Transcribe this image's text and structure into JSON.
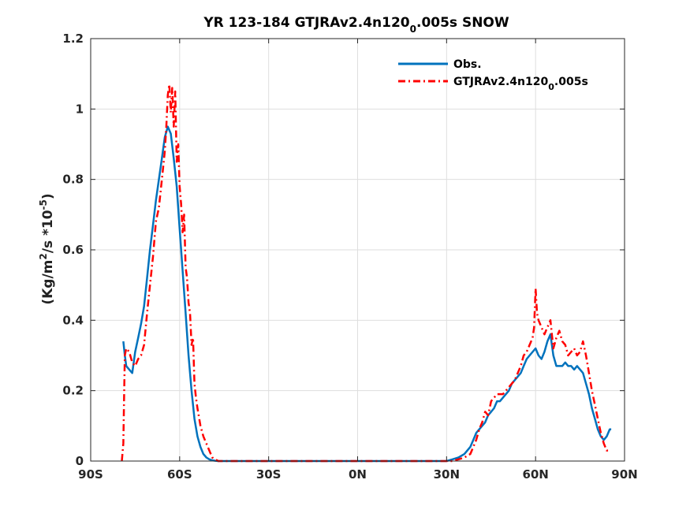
{
  "chart_data": {
    "type": "line",
    "title_main": "YR 123-184 GTJRAv2.4n120",
    "title_sub": "0",
    "title_end": ".005s SNOW",
    "ylabel_pre": "(Kg/m",
    "ylabel_sup1": "2",
    "ylabel_mid": "/s *10",
    "ylabel_sup2": "-5",
    "ylabel_post": ")",
    "xlim": [
      -90,
      90
    ],
    "ylim": [
      0,
      1.2
    ],
    "x_ticks": [
      -90,
      -60,
      -30,
      0,
      30,
      60,
      90
    ],
    "x_tick_labels": [
      "90S",
      "60S",
      "30S",
      "0N",
      "30N",
      "60N",
      "90N"
    ],
    "y_ticks": [
      0,
      0.2,
      0.4,
      0.6,
      0.8,
      1.0,
      1.2
    ],
    "y_tick_labels": [
      "0",
      "0.2",
      "0.4",
      "0.6",
      "0.8",
      "1",
      "1.2"
    ],
    "grid": true,
    "legend_position": "top-right",
    "series": [
      {
        "name": "Obs.",
        "color": "#0072BD",
        "style": "solid",
        "x": [
          -79,
          -78.5,
          -78,
          -77,
          -76,
          -75,
          -74,
          -73,
          -72,
          -71,
          -70,
          -69,
          -68,
          -67,
          -66,
          -65,
          -64,
          -63.5,
          -63,
          -62,
          -61,
          -60,
          -59,
          -58,
          -57,
          -56,
          -55,
          -54,
          -53,
          -52,
          -51,
          -50,
          -49,
          -48,
          -47,
          -45,
          -40,
          -30,
          -20,
          -10,
          0,
          10,
          20,
          25,
          28,
          30,
          32,
          34,
          36,
          38,
          39,
          40,
          41,
          42,
          43,
          44,
          45,
          46,
          47,
          48,
          49,
          50,
          51,
          52,
          53,
          54,
          55,
          56,
          57,
          58,
          59,
          60,
          61,
          62,
          63,
          64,
          65,
          66,
          67,
          68,
          69,
          70,
          71,
          72,
          73,
          74,
          75,
          76,
          77,
          78,
          79,
          80,
          81,
          82,
          83,
          84,
          85,
          85.5
        ],
        "y": [
          0.34,
          0.3,
          0.27,
          0.26,
          0.25,
          0.31,
          0.35,
          0.39,
          0.44,
          0.52,
          0.6,
          0.67,
          0.74,
          0.8,
          0.86,
          0.92,
          0.95,
          0.94,
          0.93,
          0.86,
          0.78,
          0.66,
          0.54,
          0.42,
          0.3,
          0.2,
          0.12,
          0.07,
          0.04,
          0.02,
          0.01,
          0.005,
          0.002,
          0.001,
          0.0,
          0.0,
          0.0,
          0.0,
          0.0,
          0.0,
          0.0,
          0.0,
          0.0,
          0.0,
          0.0,
          0.0,
          0.005,
          0.01,
          0.02,
          0.04,
          0.06,
          0.08,
          0.09,
          0.1,
          0.11,
          0.13,
          0.14,
          0.15,
          0.17,
          0.17,
          0.18,
          0.19,
          0.2,
          0.22,
          0.23,
          0.24,
          0.25,
          0.27,
          0.29,
          0.3,
          0.31,
          0.32,
          0.3,
          0.29,
          0.31,
          0.34,
          0.36,
          0.3,
          0.27,
          0.27,
          0.27,
          0.28,
          0.27,
          0.27,
          0.26,
          0.27,
          0.26,
          0.25,
          0.22,
          0.19,
          0.15,
          0.12,
          0.09,
          0.07,
          0.06,
          0.07,
          0.09,
          0.09
        ]
      },
      {
        "name": "GTJRAv2.4n120_0.005s",
        "color": "#FF0000",
        "style": "dashdot",
        "x": [
          -79.5,
          -79,
          -78.7,
          -78.5,
          -78,
          -77,
          -76,
          -75,
          -74,
          -73,
          -72,
          -71,
          -70,
          -69,
          -68,
          -67,
          -66,
          -65,
          -64.5,
          -64,
          -63.5,
          -63,
          -62.5,
          -62,
          -61.5,
          -61,
          -60.5,
          -60,
          -59.5,
          -59,
          -58.5,
          -58,
          -57.5,
          -57,
          -56.5,
          -56,
          -55.5,
          -55,
          -54.5,
          -54,
          -53,
          -52,
          -51,
          -50,
          -49,
          -48,
          -47,
          -45,
          -40,
          -30,
          -20,
          -10,
          0,
          10,
          20,
          25,
          28,
          30,
          32,
          34,
          36,
          38,
          39,
          40,
          41,
          42,
          43,
          44,
          45,
          46,
          47,
          48,
          49,
          50,
          51,
          52,
          53,
          54,
          55,
          56,
          57,
          58,
          59,
          59.5,
          60,
          60.5,
          61,
          62,
          63,
          64,
          65,
          66,
          67,
          68,
          69,
          70,
          71,
          72,
          73,
          74,
          75,
          76,
          77,
          78,
          79,
          80,
          81,
          82,
          83,
          84,
          85
        ],
        "y": [
          0.0,
          0.05,
          0.2,
          0.3,
          0.32,
          0.31,
          0.28,
          0.27,
          0.29,
          0.3,
          0.33,
          0.42,
          0.5,
          0.58,
          0.68,
          0.72,
          0.8,
          0.88,
          0.95,
          1.04,
          1.07,
          0.99,
          1.06,
          0.95,
          1.05,
          0.85,
          0.9,
          0.78,
          0.73,
          0.65,
          0.7,
          0.55,
          0.52,
          0.45,
          0.42,
          0.33,
          0.35,
          0.22,
          0.18,
          0.15,
          0.1,
          0.07,
          0.05,
          0.03,
          0.01,
          0.005,
          0.0,
          0.0,
          0.0,
          0.0,
          0.0,
          0.0,
          0.0,
          0.0,
          0.0,
          0.0,
          0.0,
          0.0,
          0.0,
          0.005,
          0.01,
          0.02,
          0.04,
          0.06,
          0.09,
          0.11,
          0.14,
          0.13,
          0.17,
          0.18,
          0.19,
          0.19,
          0.19,
          0.2,
          0.21,
          0.22,
          0.23,
          0.25,
          0.27,
          0.3,
          0.31,
          0.33,
          0.35,
          0.38,
          0.49,
          0.42,
          0.4,
          0.38,
          0.36,
          0.38,
          0.4,
          0.32,
          0.35,
          0.37,
          0.34,
          0.33,
          0.3,
          0.31,
          0.32,
          0.3,
          0.31,
          0.34,
          0.3,
          0.25,
          0.2,
          0.16,
          0.12,
          0.08,
          0.05,
          0.03,
          0.03
        ]
      }
    ]
  }
}
